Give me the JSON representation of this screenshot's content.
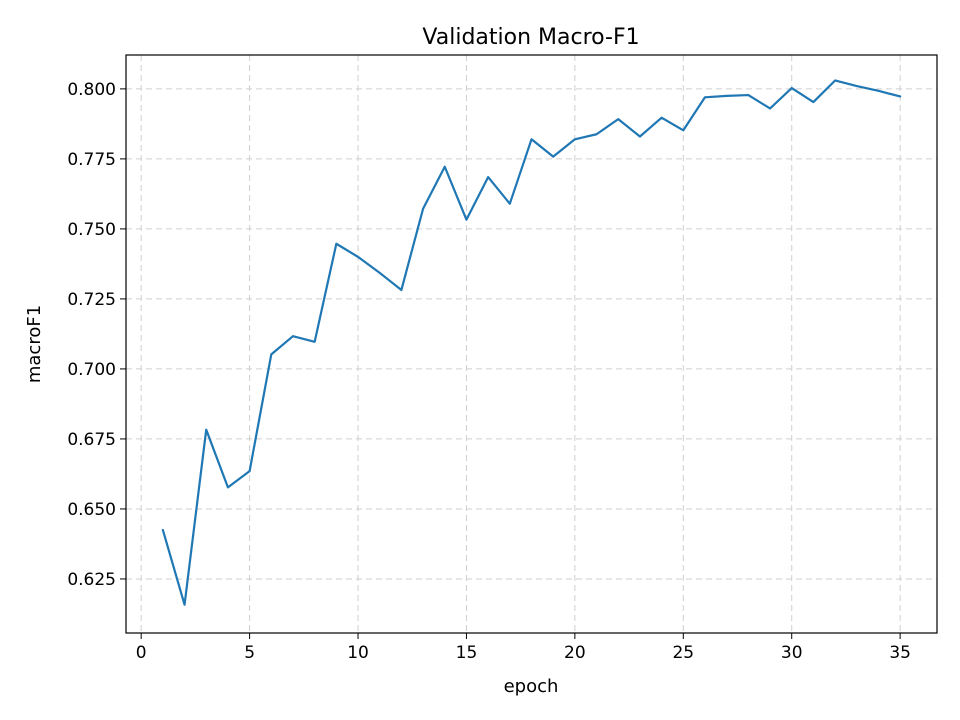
{
  "chart_data": {
    "type": "line",
    "title": "Validation Macro-F1",
    "xlabel": "epoch",
    "ylabel": "macroF1",
    "xlim": [
      -0.7,
      36.7
    ],
    "ylim": [
      0.6057,
      0.8121
    ],
    "xticks": [
      0,
      5,
      10,
      15,
      20,
      25,
      30,
      35
    ],
    "xtick_labels": [
      "0",
      "5",
      "10",
      "15",
      "20",
      "25",
      "30",
      "35"
    ],
    "yticks": [
      0.625,
      0.65,
      0.675,
      0.7,
      0.725,
      0.75,
      0.775,
      0.8
    ],
    "ytick_labels": [
      "0.625",
      "0.650",
      "0.675",
      "0.700",
      "0.725",
      "0.750",
      "0.775",
      "0.800"
    ],
    "grid": true,
    "series": [
      {
        "color": "#1f77b4",
        "x": [
          1,
          2,
          3,
          4,
          5,
          6,
          7,
          8,
          9,
          10,
          11,
          12,
          13,
          14,
          15,
          16,
          17,
          18,
          19,
          20,
          21,
          22,
          23,
          24,
          25,
          26,
          27,
          28,
          29,
          30,
          31,
          32,
          33,
          34,
          35
        ],
        "values": [
          0.6425,
          0.6158,
          0.6783,
          0.6577,
          0.6635,
          0.7052,
          0.7117,
          0.7097,
          0.7447,
          0.74,
          0.7343,
          0.7282,
          0.7572,
          0.7722,
          0.7533,
          0.7685,
          0.759,
          0.782,
          0.7758,
          0.782,
          0.7838,
          0.7892,
          0.783,
          0.7897,
          0.7852,
          0.797,
          0.7975,
          0.7978,
          0.793,
          0.8003,
          0.7953,
          0.803,
          0.801,
          0.7993,
          0.7973
        ]
      }
    ]
  }
}
